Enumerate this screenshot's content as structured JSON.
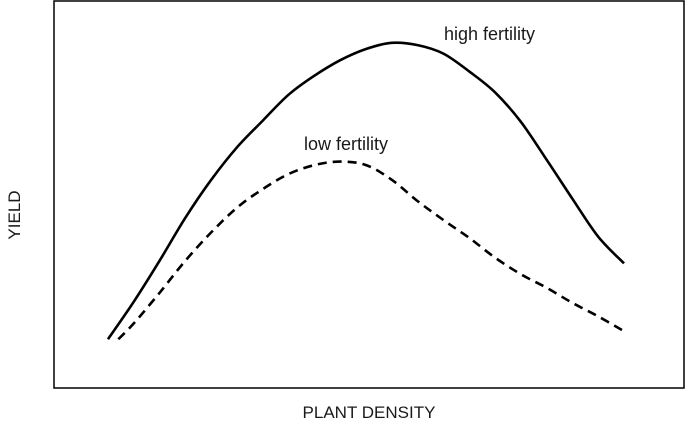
{
  "chart_data": {
    "type": "line",
    "title": "",
    "xlabel": "PLANT DENSITY",
    "ylabel": "YIELD",
    "xlim": [
      0,
      100
    ],
    "ylim": [
      0,
      100
    ],
    "grid": false,
    "legend": "none",
    "series": [
      {
        "name": "high fertility",
        "style": "solid",
        "color": "#000000",
        "x": [
          0,
          5,
          10,
          15,
          20,
          25,
          30,
          35,
          40,
          45,
          50,
          55,
          60,
          65,
          70,
          75,
          80,
          85,
          90,
          95,
          100
        ],
        "y": [
          12.6,
          22.3,
          32.9,
          44.0,
          53.8,
          62.2,
          69.1,
          75.8,
          80.7,
          84.7,
          87.6,
          89.2,
          88.6,
          86.4,
          81.8,
          76.4,
          68.8,
          59.0,
          48.9,
          39.1,
          32.2
        ]
      },
      {
        "name": "low fertility",
        "style": "dashed",
        "color": "#000000",
        "x": [
          2,
          5,
          10,
          15,
          20,
          25,
          30,
          35,
          40,
          45,
          50,
          55,
          60,
          65,
          70,
          75,
          80,
          85,
          90,
          95,
          100
        ],
        "y": [
          12.6,
          16.7,
          24.6,
          32.9,
          40.2,
          46.6,
          51.4,
          55.3,
          57.6,
          58.5,
          57.6,
          53.8,
          48.3,
          43.4,
          38.8,
          33.7,
          29.4,
          25.9,
          22.0,
          18.5,
          14.7
        ]
      }
    ],
    "annotations": [
      {
        "text": "high fertility",
        "series": 0
      },
      {
        "text": "low fertility",
        "series": 1
      }
    ]
  }
}
